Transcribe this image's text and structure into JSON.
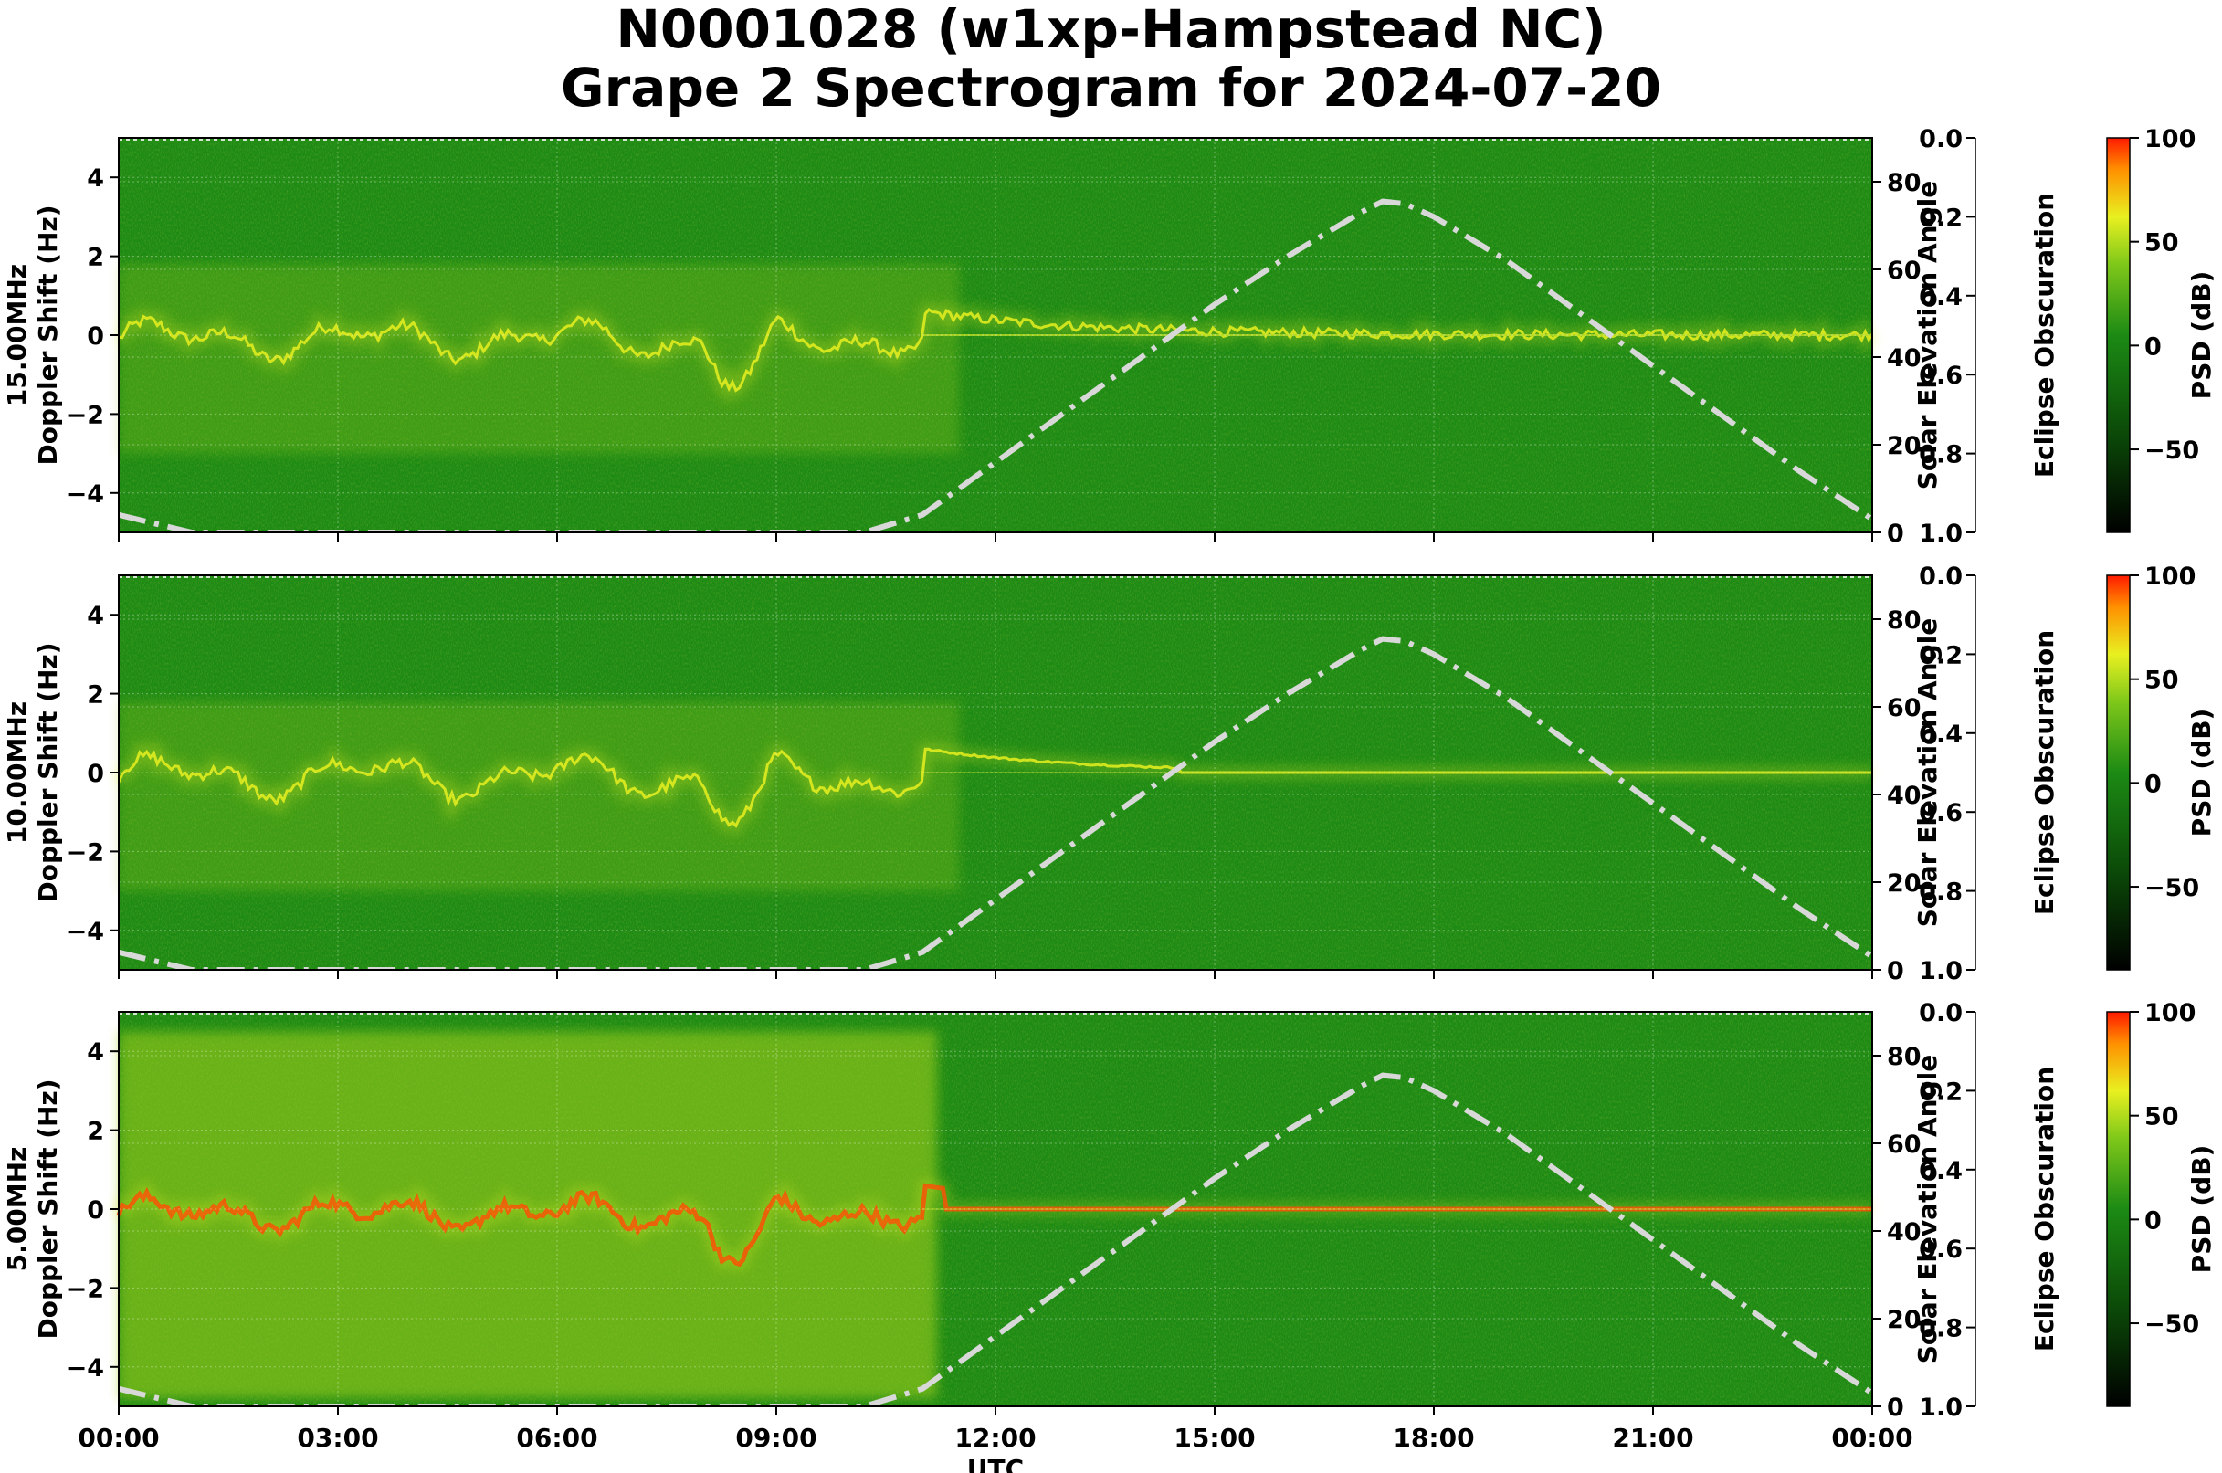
{
  "title": {
    "line1": "N0001028 (w1xp-Hampstead NC)",
    "line2": "Grape 2 Spectrogram for 2024-07-20"
  },
  "colors": {
    "background_green": "#1c8a14",
    "trace_yellow": "#e8f020",
    "peak_red": "#ff2a00",
    "solar_curve": "#d8d8d8"
  },
  "chart_data": [
    {
      "type": "heatmap",
      "panel_label": "15.00MHz",
      "ylabel": "Doppler Shift (Hz)",
      "ylim": [
        -5,
        5
      ],
      "yticks": [
        "4",
        "2",
        "0",
        "−2",
        "−4"
      ],
      "xlim": [
        "00:00",
        "00:00"
      ],
      "right_axis_1": {
        "label": "Solar Elevation Angle",
        "ticks": [
          "80",
          "60",
          "40",
          "20",
          "0"
        ]
      },
      "right_axis_2": {
        "label": "Eclipse Obscuration",
        "ticks": [
          "0.0",
          "0.2",
          "0.4",
          "0.6",
          "0.8",
          "1.0"
        ]
      },
      "colorbar": {
        "label": "PSD (dB)",
        "ticks": [
          "100",
          "50",
          "0",
          "−50"
        ]
      },
      "grid": true
    },
    {
      "type": "heatmap",
      "panel_label": "10.00MHz",
      "ylabel": "Doppler Shift (Hz)",
      "ylim": [
        -5,
        5
      ],
      "yticks": [
        "4",
        "2",
        "0",
        "−2",
        "−4"
      ],
      "right_axis_1": {
        "label": "Solar Elevation Angle",
        "ticks": [
          "80",
          "60",
          "40",
          "20",
          "0"
        ]
      },
      "right_axis_2": {
        "label": "Eclipse Obscuration",
        "ticks": [
          "0.0",
          "0.2",
          "0.4",
          "0.6",
          "0.8",
          "1.0"
        ]
      },
      "colorbar": {
        "label": "PSD (dB)",
        "ticks": [
          "100",
          "50",
          "0",
          "−50"
        ]
      },
      "grid": true
    },
    {
      "type": "heatmap",
      "panel_label": "5.00MHz",
      "ylabel": "Doppler Shift (Hz)",
      "ylim": [
        -5,
        5
      ],
      "yticks": [
        "4",
        "2",
        "0",
        "−2",
        "−4"
      ],
      "right_axis_1": {
        "label": "Solar Elevation Angle",
        "ticks": [
          "80",
          "60",
          "40",
          "20",
          "0"
        ]
      },
      "right_axis_2": {
        "label": "Eclipse Obscuration",
        "ticks": [
          "0.0",
          "0.2",
          "0.4",
          "0.6",
          "0.8",
          "1.0"
        ]
      },
      "colorbar": {
        "label": "PSD (dB)",
        "ticks": [
          "100",
          "50",
          "0",
          "−50"
        ]
      },
      "grid": true
    }
  ],
  "x_axis": {
    "label": "UTC",
    "ticks": [
      "00:00",
      "03:00",
      "06:00",
      "09:00",
      "12:00",
      "15:00",
      "18:00",
      "21:00",
      "00:00"
    ]
  },
  "solar_elevation": {
    "hours": [
      0,
      0.5,
      1,
      2,
      4,
      6,
      8,
      10,
      10.2,
      11,
      12,
      13,
      14,
      15,
      16,
      17,
      17.3,
      17.6,
      18,
      19,
      20,
      21,
      22,
      23,
      24
    ],
    "degrees": [
      4,
      2,
      0,
      0,
      0,
      0,
      0,
      0,
      0,
      4,
      16,
      28,
      40,
      52,
      63,
      73,
      75.5,
      75,
      72,
      62,
      50,
      38,
      26,
      14,
      3
    ]
  }
}
